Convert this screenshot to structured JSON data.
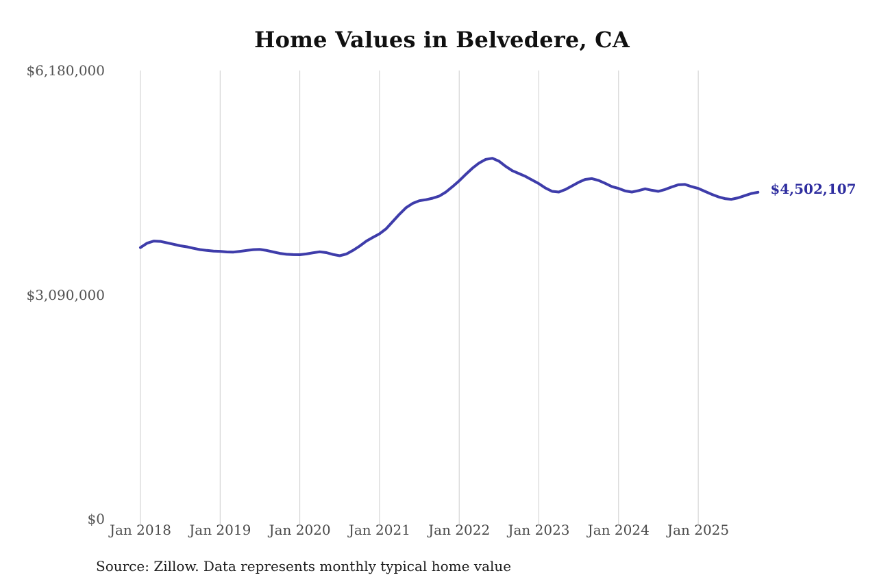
{
  "chart_data": {
    "type": "line",
    "title": "Home Values in Belvedere, CA",
    "source_note": "Source: Zillow. Data represents monthly typical home value",
    "end_label": "$4,502,107",
    "latest_value": 4502107,
    "x_start": "Jan 2018",
    "x_interval": "monthly",
    "x_tick_labels": [
      "Jan 2018",
      "Jan 2019",
      "Jan 2020",
      "Jan 2021",
      "Jan 2022",
      "Jan 2023",
      "Jan 2024",
      "Jan 2025"
    ],
    "y_ticks": [
      {
        "value": 0,
        "label": "$0"
      },
      {
        "value": 3090000,
        "label": "$3,090,000"
      },
      {
        "value": 6180000,
        "label": "$6,180,000"
      }
    ],
    "ylim": [
      0,
      6180000
    ],
    "grid": "vertical-year-gridlines-only",
    "legend": "none",
    "colors": {
      "line": "#3e3caa",
      "end_label": "#2e2d9f",
      "gridline": "#cdcdcd"
    },
    "series": [
      {
        "name": "Monthly typical home value",
        "values": [
          3740000,
          3800000,
          3830000,
          3825000,
          3805000,
          3785000,
          3765000,
          3750000,
          3730000,
          3712000,
          3700000,
          3692000,
          3688000,
          3680000,
          3678000,
          3688000,
          3700000,
          3712000,
          3715000,
          3700000,
          3680000,
          3660000,
          3648000,
          3643000,
          3642000,
          3652000,
          3668000,
          3682000,
          3670000,
          3645000,
          3628000,
          3650000,
          3700000,
          3760000,
          3828000,
          3880000,
          3930000,
          4000000,
          4100000,
          4200000,
          4290000,
          4350000,
          4385000,
          4400000,
          4420000,
          4450000,
          4505000,
          4580000,
          4660000,
          4750000,
          4835000,
          4905000,
          4955000,
          4970000,
          4930000,
          4860000,
          4800000,
          4760000,
          4720000,
          4670000,
          4620000,
          4560000,
          4515000,
          4505000,
          4540000,
          4590000,
          4640000,
          4680000,
          4690000,
          4665000,
          4625000,
          4580000,
          4555000,
          4520000,
          4505000,
          4525000,
          4550000,
          4530000,
          4515000,
          4540000,
          4575000,
          4605000,
          4610000,
          4580000,
          4555000,
          4515000,
          4475000,
          4440000,
          4415000,
          4405000,
          4425000,
          4455000,
          4485000,
          4502107
        ]
      }
    ]
  }
}
